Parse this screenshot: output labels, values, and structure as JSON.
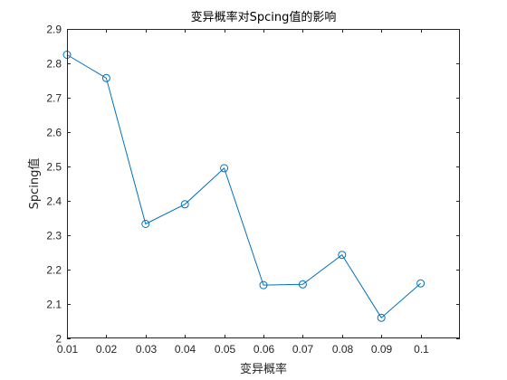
{
  "chart_data": {
    "type": "line",
    "title": "变异概率对Spcing值的影响",
    "xlabel": "变异概率",
    "ylabel": "Spcing值",
    "x": [
      0.01,
      0.02,
      0.03,
      0.04,
      0.05,
      0.06,
      0.07,
      0.08,
      0.09,
      0.1
    ],
    "series": [
      {
        "values": [
          2.825,
          2.757,
          2.333,
          2.39,
          2.495,
          2.155,
          2.157,
          2.243,
          2.06,
          2.16
        ],
        "color": "#0072BD",
        "marker": "circle"
      }
    ],
    "xlim": [
      0.01,
      0.11
    ],
    "ylim": [
      2.0,
      2.9
    ],
    "xticks": [
      "0.01",
      "0.02",
      "0.03",
      "0.04",
      "0.05",
      "0.06",
      "0.07",
      "0.08",
      "0.09",
      "0.1"
    ],
    "yticks": [
      "2",
      "2.1",
      "2.2",
      "2.3",
      "2.4",
      "2.5",
      "2.6",
      "2.7",
      "2.8",
      "2.9"
    ],
    "grid": false,
    "box": true
  }
}
